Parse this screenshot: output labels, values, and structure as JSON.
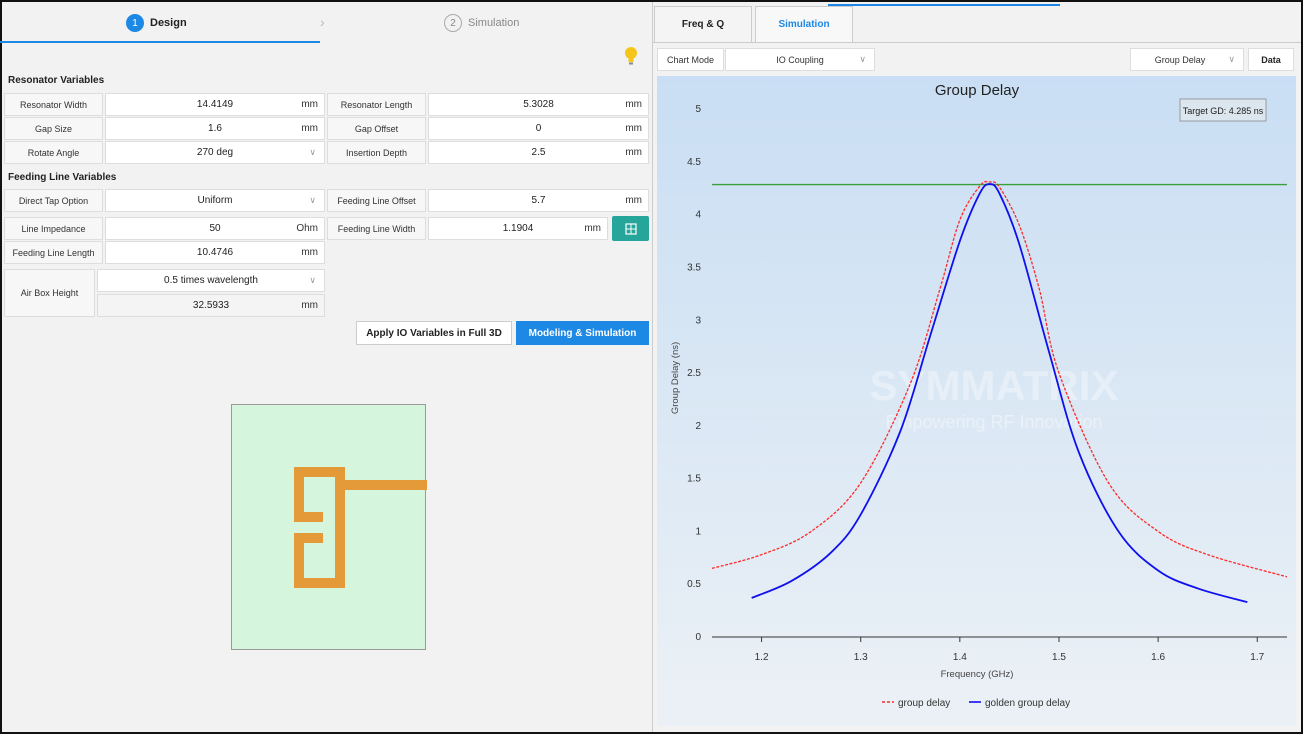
{
  "steps": [
    {
      "num": "1",
      "label": "Design"
    },
    {
      "num": "2",
      "label": "Simulation"
    }
  ],
  "sections": {
    "resonator": "Resonator Variables",
    "feeding": "Feeding Line Variables"
  },
  "resonator": {
    "width": {
      "label": "Resonator Width",
      "value": "14.4149",
      "unit": "mm"
    },
    "length": {
      "label": "Resonator Length",
      "value": "5.3028",
      "unit": "mm"
    },
    "gap": {
      "label": "Gap Size",
      "value": "1.6",
      "unit": "mm"
    },
    "gap_offset": {
      "label": "Gap Offset",
      "value": "0",
      "unit": "mm"
    },
    "rotate": {
      "label": "Rotate Angle",
      "value": "270 deg"
    },
    "insertion": {
      "label": "Insertion Depth",
      "value": "2.5",
      "unit": "mm"
    }
  },
  "feeding": {
    "tap": {
      "label": "Direct Tap Option",
      "value": "Uniform"
    },
    "offset": {
      "label": "Feeding Line Offset",
      "value": "5.7",
      "unit": "mm"
    },
    "impedance": {
      "label": "Line Impedance",
      "value": "50",
      "unit": "Ohm"
    },
    "width": {
      "label": "Feeding Line Width",
      "value": "1.1904",
      "unit": "mm"
    },
    "length": {
      "label": "Feeding Line Length",
      "value": "10.4746",
      "unit": "mm"
    },
    "airbox": {
      "label": "Air Box Height",
      "option": "0.5 times wavelength",
      "value": "32.5933",
      "unit": "mm"
    }
  },
  "buttons": {
    "apply": "Apply IO Variables in Full 3D",
    "model": "Modeling & Simulation"
  },
  "right": {
    "tabs": [
      "Freq & Q",
      "Simulation"
    ],
    "chart_mode_label": "Chart Mode",
    "chart_mode_value": "IO Coupling",
    "plot_select": "Group Delay",
    "data_button": "Data"
  },
  "colors": {
    "accent": "#1e88e5",
    "teal": "#26a69a",
    "preview_bg": "#d5f5dc",
    "resonator_metal": "#e59a3a",
    "series_red": "#ff2a2a",
    "series_blue": "#1010ee",
    "target_line": "#3aa03a"
  },
  "icons": {
    "bulb": "lightbulb-icon",
    "calc": "calculator-icon",
    "chevron": "chevron-down-icon"
  },
  "chart_data": {
    "type": "line",
    "title": "Group Delay",
    "xlabel": "Frequency (GHz)",
    "ylabel": "Group Delay (ns)",
    "xlim": [
      1.15,
      1.73
    ],
    "ylim": [
      0,
      5.2
    ],
    "xticks": [
      1.2,
      1.3,
      1.4,
      1.5,
      1.6,
      1.7
    ],
    "yticks": [
      0,
      0.5,
      1,
      1.5,
      2,
      2.5,
      3,
      3.5,
      4,
      4.5,
      5
    ],
    "legend": "bottom",
    "grid": false,
    "annotation": "Target GD: 4.285 ns",
    "target": 4.285,
    "watermark": [
      "SYMMATRIX",
      "Empowering RF Innovation"
    ],
    "series": [
      {
        "name": "group delay",
        "color": "#ff2a2a",
        "dashed": true,
        "x": [
          1.15,
          1.2,
          1.25,
          1.3,
          1.35,
          1.38,
          1.4,
          1.42,
          1.43,
          1.44,
          1.46,
          1.48,
          1.5,
          1.55,
          1.6,
          1.65,
          1.73
        ],
        "y": [
          0.65,
          0.78,
          1.0,
          1.46,
          2.4,
          3.3,
          3.95,
          4.27,
          4.31,
          4.26,
          3.9,
          3.3,
          2.5,
          1.46,
          1.0,
          0.78,
          0.57
        ]
      },
      {
        "name": "golden group delay",
        "color": "#1010ee",
        "dashed": false,
        "x": [
          1.19,
          1.23,
          1.27,
          1.3,
          1.34,
          1.37,
          1.4,
          1.42,
          1.43,
          1.44,
          1.46,
          1.49,
          1.52,
          1.56,
          1.6,
          1.64,
          1.69
        ],
        "y": [
          0.37,
          0.53,
          0.8,
          1.16,
          1.95,
          2.85,
          3.75,
          4.2,
          4.29,
          4.2,
          3.72,
          2.7,
          1.75,
          1.0,
          0.63,
          0.46,
          0.33
        ]
      }
    ]
  }
}
